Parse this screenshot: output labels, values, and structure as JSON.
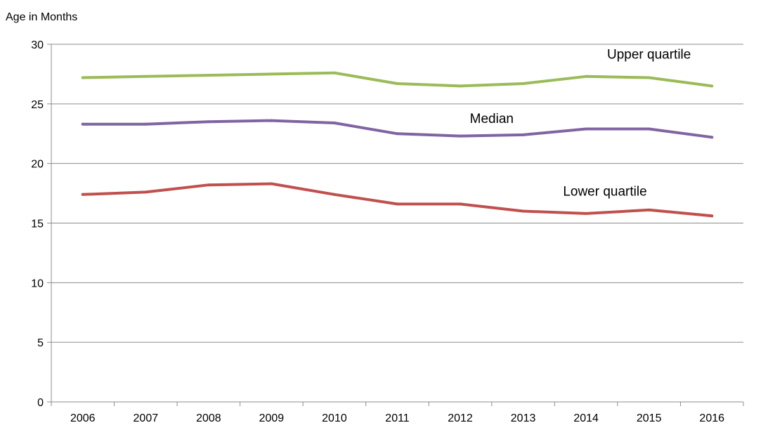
{
  "chart_data": {
    "type": "line",
    "ylabel": "Age in Months",
    "ylim": [
      0,
      30
    ],
    "yticks": [
      0,
      5,
      10,
      15,
      20,
      25,
      30
    ],
    "grid": true,
    "x": [
      "2006",
      "2007",
      "2008",
      "2009",
      "2010",
      "2011",
      "2012",
      "2013",
      "2014",
      "2015",
      "2016"
    ],
    "series": [
      {
        "name": "Upper quartile",
        "color": "#9bbb59",
        "values": [
          27.2,
          27.3,
          27.4,
          27.5,
          27.6,
          26.7,
          26.5,
          26.7,
          27.3,
          27.2,
          26.5
        ]
      },
      {
        "name": "Median",
        "color": "#8064a2",
        "values": [
          23.3,
          23.3,
          23.5,
          23.6,
          23.4,
          22.5,
          22.3,
          22.4,
          22.9,
          22.9,
          22.2
        ]
      },
      {
        "name": "Lower quartile",
        "color": "#c0504d",
        "values": [
          17.4,
          17.6,
          18.2,
          18.3,
          17.4,
          16.6,
          16.6,
          16.0,
          15.8,
          16.1,
          15.6
        ]
      }
    ]
  }
}
